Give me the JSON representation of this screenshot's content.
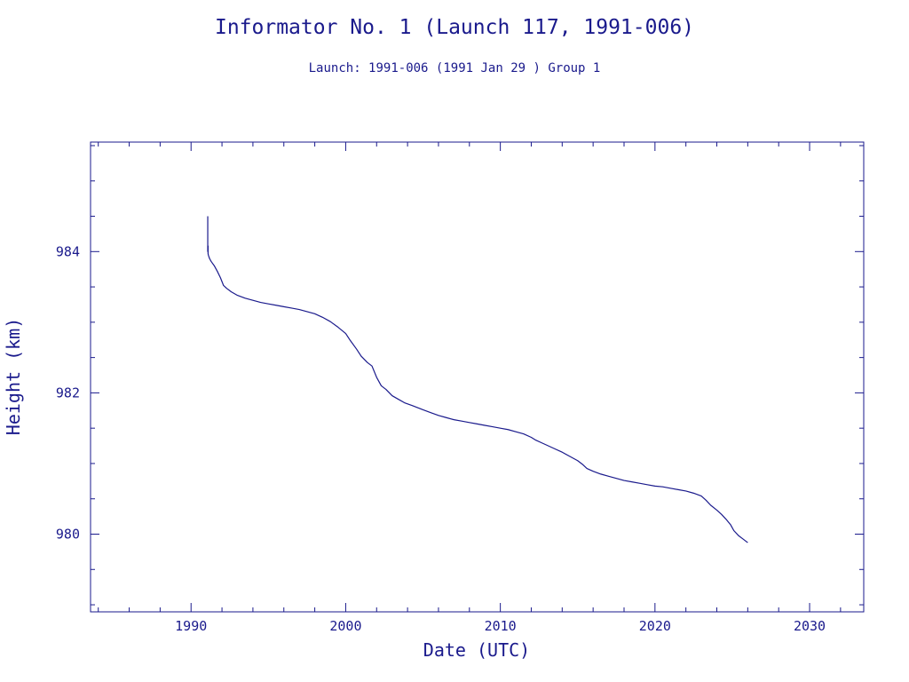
{
  "colors": {
    "ink": "#1a1a8c",
    "background": "#ffffff"
  },
  "chart_data": {
    "type": "line",
    "title": "Informator No. 1 (Launch 117, 1991-006)",
    "subtitle": "Launch: 1991-006  (1991 Jan 29 )  Group 1",
    "xlabel": "Date (UTC)",
    "ylabel": "Height (km)",
    "xlim": [
      1983.5,
      2033.5
    ],
    "ylim": [
      978.9,
      985.55
    ],
    "x_ticks": [
      1990,
      2000,
      2010,
      2020,
      2030
    ],
    "x_tick_labels": [
      "1990",
      "2000",
      "2010",
      "2020",
      "2030"
    ],
    "x_minor_step": 2,
    "y_ticks": [
      980,
      982,
      984
    ],
    "y_tick_labels": [
      "980",
      "982",
      "984"
    ],
    "y_minor_step": 0.5,
    "grid": false,
    "series": [
      {
        "x": [
          1991.08,
          1991.08,
          1991.1,
          1991.1,
          1991.12,
          1991.15,
          1991.2,
          1991.3,
          1991.5,
          1991.7,
          1991.9,
          1992.1,
          1992.3,
          1992.6,
          1993.0,
          1993.5,
          1994.0,
          1994.5,
          1995.0,
          1995.5,
          1996.0,
          1996.5,
          1997.0,
          1997.5,
          1998.0,
          1998.5,
          1999.0,
          1999.5,
          2000.0,
          2000.3,
          2000.7,
          2001.0,
          2001.4,
          2001.7,
          2002.0,
          2002.3,
          2002.6,
          2003.0,
          2003.4,
          2003.8,
          2004.3,
          2005.0,
          2005.5,
          2006.0,
          2006.5,
          2007.0,
          2007.5,
          2008.0,
          2008.5,
          2009.0,
          2009.5,
          2010.0,
          2010.5,
          2011.0,
          2011.5,
          2012.0,
          2012.3,
          2012.7,
          2013.0,
          2013.5,
          2014.0,
          2014.5,
          2015.0,
          2015.3,
          2015.6,
          2016.0,
          2016.5,
          2017.0,
          2017.5,
          2018.0,
          2018.5,
          2019.0,
          2019.5,
          2020.0,
          2020.5,
          2021.0,
          2021.5,
          2022.0,
          2022.5,
          2023.0,
          2023.3,
          2023.6,
          2024.0,
          2024.3,
          2024.6,
          2024.9,
          2025.1,
          2025.4,
          2025.7,
          2026.0
        ],
        "values": [
          984.5,
          984.0,
          984.08,
          983.97,
          983.95,
          983.93,
          983.9,
          983.86,
          983.8,
          983.72,
          983.63,
          983.52,
          983.48,
          983.43,
          983.38,
          983.34,
          983.31,
          983.28,
          983.26,
          983.24,
          983.22,
          983.2,
          983.18,
          983.15,
          983.12,
          983.07,
          983.01,
          982.93,
          982.84,
          982.74,
          982.62,
          982.52,
          982.43,
          982.38,
          982.22,
          982.1,
          982.05,
          981.96,
          981.91,
          981.86,
          981.82,
          981.76,
          981.72,
          981.68,
          981.65,
          981.62,
          981.6,
          981.58,
          981.56,
          981.54,
          981.52,
          981.5,
          981.48,
          981.45,
          981.42,
          981.37,
          981.33,
          981.29,
          981.26,
          981.21,
          981.16,
          981.1,
          981.04,
          980.99,
          980.93,
          980.89,
          980.85,
          980.82,
          980.79,
          980.76,
          980.74,
          980.72,
          980.7,
          980.68,
          980.67,
          980.65,
          980.63,
          980.61,
          980.58,
          980.54,
          980.48,
          980.41,
          980.34,
          980.28,
          980.21,
          980.13,
          980.05,
          979.98,
          979.93,
          979.88
        ]
      }
    ]
  }
}
